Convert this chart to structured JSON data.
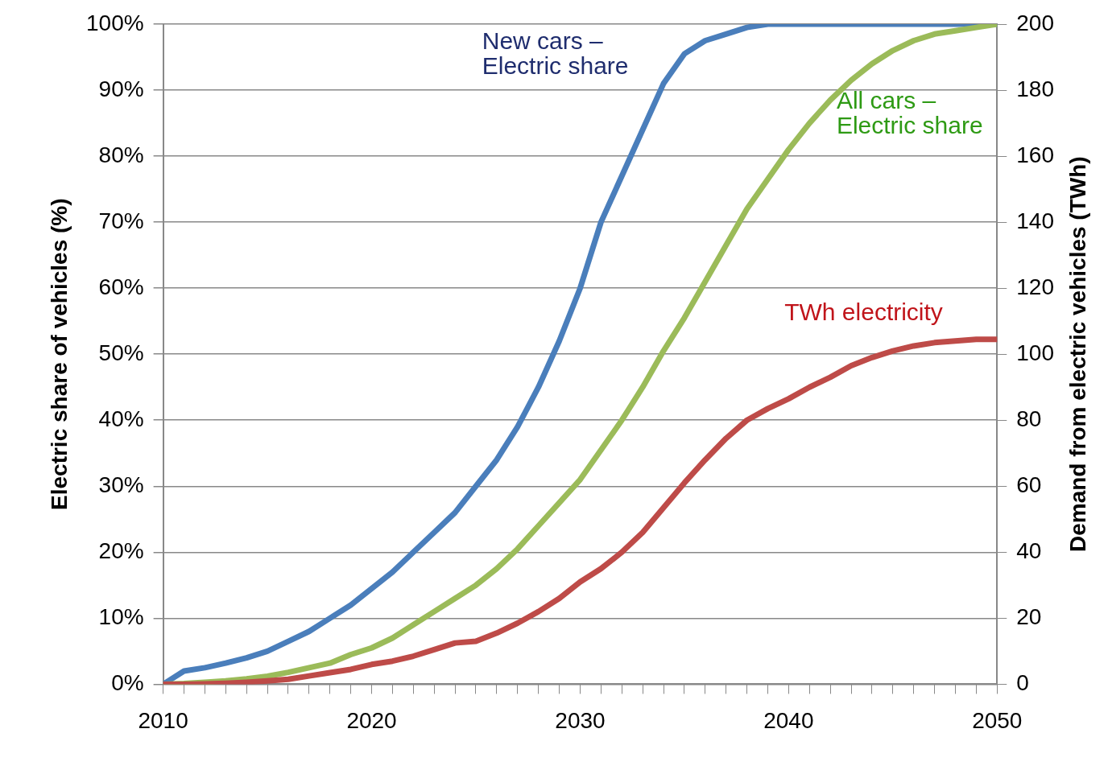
{
  "chart_data": {
    "type": "line",
    "ylabel": "Electric share of vehicles (%)",
    "y2label": "Demand from electric vehicles (TWh)",
    "x": [
      2010,
      2011,
      2012,
      2013,
      2014,
      2015,
      2016,
      2017,
      2018,
      2019,
      2020,
      2021,
      2022,
      2023,
      2024,
      2025,
      2026,
      2027,
      2028,
      2029,
      2030,
      2031,
      2032,
      2033,
      2034,
      2035,
      2036,
      2037,
      2038,
      2039,
      2040,
      2041,
      2042,
      2043,
      2044,
      2045,
      2046,
      2047,
      2048,
      2049,
      2050
    ],
    "series": [
      {
        "name": "New cars – Electric share",
        "color": "#4a7ebb",
        "values": [
          0,
          2,
          2.5,
          3.2,
          4,
          5,
          6.5,
          8,
          10,
          12,
          14.5,
          17,
          20,
          23,
          26,
          30,
          34,
          39,
          45,
          52,
          60,
          70,
          77,
          84,
          91,
          95.5,
          97.5,
          98.5,
          99.5,
          100,
          100,
          100,
          100,
          100,
          100,
          100,
          100,
          100,
          100,
          100,
          100
        ]
      },
      {
        "name": "All cars – Electric share",
        "color": "#9bbb59",
        "values": [
          0,
          0.1,
          0.3,
          0.5,
          0.8,
          1.2,
          1.8,
          2.5,
          3.2,
          4.5,
          5.5,
          7,
          9,
          11,
          13,
          15,
          17.5,
          20.5,
          24,
          27.5,
          31,
          35.5,
          40,
          45,
          50.5,
          55.5,
          61,
          66.5,
          72,
          76.5,
          81,
          85,
          88.5,
          91.5,
          94,
          96,
          97.5,
          98.5,
          99,
          99.5,
          100
        ]
      },
      {
        "name": "TWh electricity",
        "color": "#be4b48",
        "axis": "y2",
        "values": [
          0,
          0,
          0.1,
          0.3,
          0.6,
          1,
          1.5,
          2.5,
          3.5,
          4.5,
          6,
          7,
          8.5,
          10.5,
          12.5,
          13,
          15.5,
          18.5,
          22,
          26,
          31,
          35,
          40,
          46,
          53.5,
          61,
          68,
          74.5,
          80,
          83.5,
          86.5,
          90,
          93,
          96.5,
          99,
          101,
          102.5,
          103.5,
          104,
          104.5,
          104.5
        ]
      }
    ],
    "xlim": [
      2010,
      2050
    ],
    "xticks": [
      2010,
      {
        "value": 2011,
        "label": null
      },
      {
        "value": 2012,
        "label": null
      },
      {
        "value": 2013,
        "label": null
      },
      {
        "value": 2014,
        "label": null
      },
      {
        "value": 2015,
        "label": null
      },
      {
        "value": 2016,
        "label": null
      },
      {
        "value": 2017,
        "label": null
      },
      {
        "value": 2018,
        "label": null
      },
      {
        "value": 2019,
        "label": null
      },
      2020,
      {
        "value": 2021,
        "label": null
      },
      {
        "value": 2022,
        "label": null
      },
      {
        "value": 2023,
        "label": null
      },
      {
        "value": 2024,
        "label": null
      },
      {
        "value": 2025,
        "label": null
      },
      {
        "value": 2026,
        "label": null
      },
      {
        "value": 2027,
        "label": null
      },
      {
        "value": 2028,
        "label": null
      },
      {
        "value": 2029,
        "label": null
      },
      2030,
      {
        "value": 2031,
        "label": null
      },
      {
        "value": 2032,
        "label": null
      },
      {
        "value": 2033,
        "label": null
      },
      {
        "value": 2034,
        "label": null
      },
      {
        "value": 2035,
        "label": null
      },
      {
        "value": 2036,
        "label": null
      },
      {
        "value": 2037,
        "label": null
      },
      {
        "value": 2038,
        "label": null
      },
      {
        "value": 2039,
        "label": null
      },
      2040,
      {
        "value": 2041,
        "label": null
      },
      {
        "value": 2042,
        "label": null
      },
      {
        "value": 2043,
        "label": null
      },
      {
        "value": 2044,
        "label": null
      },
      {
        "value": 2045,
        "label": null
      },
      {
        "value": 2046,
        "label": null
      },
      {
        "value": 2047,
        "label": null
      },
      {
        "value": 2048,
        "label": null
      },
      {
        "value": 2049,
        "label": null
      },
      2050
    ],
    "ylim": [
      0,
      100
    ],
    "yticks": [
      {
        "value": 0,
        "label": "0%"
      },
      {
        "value": 10,
        "label": "10%"
      },
      {
        "value": 20,
        "label": "20%"
      },
      {
        "value": 30,
        "label": "30%"
      },
      {
        "value": 40,
        "label": "40%"
      },
      {
        "value": 50,
        "label": "50%"
      },
      {
        "value": 60,
        "label": "60%"
      },
      {
        "value": 70,
        "label": "70%"
      },
      {
        "value": 80,
        "label": "80%"
      },
      {
        "value": 90,
        "label": "90%"
      },
      {
        "value": 100,
        "label": "100%"
      }
    ],
    "y2lim": [
      0,
      200
    ],
    "y2ticks": [
      0,
      20,
      40,
      60,
      80,
      100,
      120,
      140,
      160,
      180,
      200
    ],
    "grid": "y",
    "legend": false,
    "marker": "none",
    "line_style": "solid"
  }
}
